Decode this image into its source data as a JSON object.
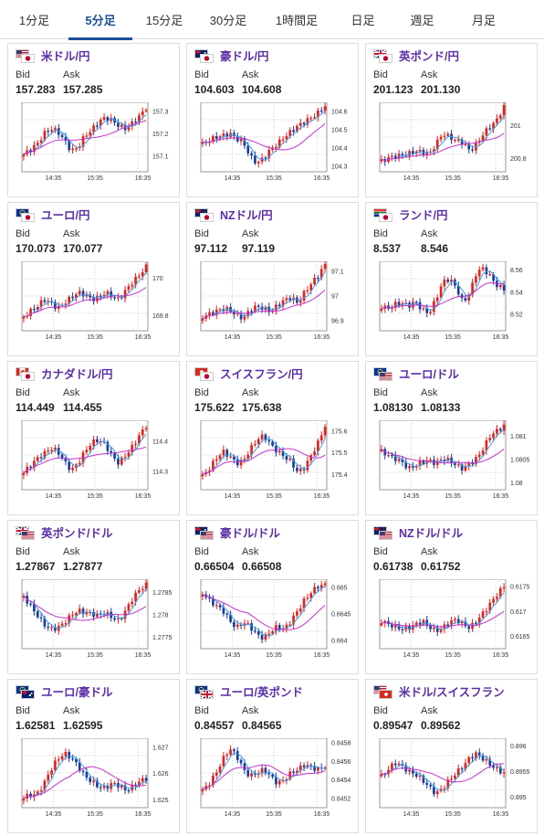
{
  "tabs": [
    {
      "label": "1分足",
      "active": false
    },
    {
      "label": "5分足",
      "active": true
    },
    {
      "label": "15分足",
      "active": false
    },
    {
      "label": "30分足",
      "active": false
    },
    {
      "label": "1時間足",
      "active": false
    },
    {
      "label": "日足",
      "active": false
    },
    {
      "label": "週足",
      "active": false
    },
    {
      "label": "月足",
      "active": false
    }
  ],
  "colors": {
    "accent": "#1a4f96",
    "pair_name": "#5a2ea6",
    "candle_up": "#e0231e",
    "candle_down": "#1a3d9c",
    "ma_short": "#3aa0e6",
    "ma_long": "#c233c9"
  },
  "labels": {
    "bid": "Bid",
    "ask": "Ask"
  },
  "cards": [
    {
      "pair": "米ドル/円",
      "flags": [
        "us",
        "jp"
      ],
      "bid": "157.283",
      "ask": "157.285",
      "chart_data": {
        "type": "candlestick",
        "x_ticks": [
          "14:35",
          "15:35",
          "16:35"
        ],
        "y_ticks": [
          "157.3",
          "157.2",
          "157.1"
        ],
        "ylim": [
          157.03,
          157.34
        ],
        "pattern": [
          0.25,
          0.32,
          0.4,
          0.55,
          0.62,
          0.58,
          0.45,
          0.3,
          0.35,
          0.52,
          0.6,
          0.72,
          0.78,
          0.74,
          0.66,
          0.62,
          0.7,
          0.8,
          0.92
        ]
      }
    },
    {
      "pair": "豪ドル/円",
      "flags": [
        "au",
        "jp"
      ],
      "bid": "104.603",
      "ask": "104.608",
      "chart_data": {
        "type": "candlestick",
        "x_ticks": [
          "14:35",
          "15:35",
          "16:35"
        ],
        "y_ticks": [
          "104.6",
          "104.5",
          "104.4",
          "104.3"
        ],
        "ylim": [
          104.27,
          104.65
        ],
        "pattern": [
          0.4,
          0.45,
          0.5,
          0.52,
          0.55,
          0.48,
          0.42,
          0.22,
          0.12,
          0.2,
          0.32,
          0.4,
          0.5,
          0.58,
          0.66,
          0.72,
          0.78,
          0.85,
          0.95
        ]
      }
    },
    {
      "pair": "英ポンド/円",
      "flags": [
        "gb",
        "jp"
      ],
      "bid": "201.123",
      "ask": "201.130",
      "chart_data": {
        "type": "candlestick",
        "x_ticks": [
          "14:35",
          "15:35",
          "16:35"
        ],
        "y_ticks": [
          "201",
          "200.8"
        ],
        "ylim": [
          200.72,
          201.14
        ],
        "pattern": [
          0.15,
          0.2,
          0.22,
          0.24,
          0.26,
          0.3,
          0.28,
          0.25,
          0.4,
          0.55,
          0.5,
          0.45,
          0.42,
          0.3,
          0.4,
          0.55,
          0.65,
          0.75,
          0.95
        ]
      }
    },
    {
      "pair": "ユーロ/円",
      "flags": [
        "eu",
        "jp"
      ],
      "bid": "170.073",
      "ask": "170.077",
      "chart_data": {
        "type": "candlestick",
        "x_ticks": [
          "14:35",
          "15:35",
          "16:35"
        ],
        "y_ticks": [
          "170",
          "169.8"
        ],
        "ylim": [
          169.72,
          170.09
        ],
        "pattern": [
          0.2,
          0.28,
          0.35,
          0.45,
          0.4,
          0.32,
          0.4,
          0.48,
          0.55,
          0.52,
          0.45,
          0.48,
          0.55,
          0.5,
          0.45,
          0.58,
          0.7,
          0.8,
          0.92
        ]
      }
    },
    {
      "pair": "NZドル/円",
      "flags": [
        "nz",
        "jp"
      ],
      "bid": "97.112",
      "ask": "97.119",
      "chart_data": {
        "type": "candlestick",
        "x_ticks": [
          "14:35",
          "15:35",
          "16:35"
        ],
        "y_ticks": [
          "97.1",
          "97",
          "96.9"
        ],
        "ylim": [
          96.86,
          97.14
        ],
        "pattern": [
          0.2,
          0.24,
          0.28,
          0.32,
          0.3,
          0.22,
          0.18,
          0.3,
          0.35,
          0.32,
          0.28,
          0.36,
          0.44,
          0.48,
          0.4,
          0.55,
          0.68,
          0.8,
          0.95
        ]
      }
    },
    {
      "pair": "ランド/円",
      "flags": [
        "za",
        "jp"
      ],
      "bid": "8.537",
      "ask": "8.546",
      "chart_data": {
        "type": "candlestick",
        "x_ticks": [
          "14:35",
          "15:35",
          "16:35"
        ],
        "y_ticks": [
          "8.56",
          "8.54",
          "8.52"
        ],
        "ylim": [
          8.505,
          8.568
        ],
        "pattern": [
          0.35,
          0.32,
          0.38,
          0.4,
          0.36,
          0.42,
          0.3,
          0.25,
          0.45,
          0.7,
          0.75,
          0.62,
          0.4,
          0.55,
          0.85,
          0.9,
          0.78,
          0.65,
          0.6
        ]
      }
    },
    {
      "pair": "カナダドル/円",
      "flags": [
        "ca",
        "jp"
      ],
      "bid": "114.449",
      "ask": "114.455",
      "chart_data": {
        "type": "candlestick",
        "x_ticks": [
          "14:35",
          "15:35",
          "16:35"
        ],
        "y_ticks": [
          "114.4",
          "114.3"
        ],
        "ylim": [
          114.24,
          114.47
        ],
        "pattern": [
          0.25,
          0.35,
          0.45,
          0.52,
          0.6,
          0.55,
          0.4,
          0.28,
          0.38,
          0.55,
          0.68,
          0.72,
          0.65,
          0.48,
          0.38,
          0.5,
          0.62,
          0.78,
          0.92
        ]
      }
    },
    {
      "pair": "スイスフラン/円",
      "flags": [
        "ch",
        "jp"
      ],
      "bid": "175.622",
      "ask": "175.638",
      "chart_data": {
        "type": "candlestick",
        "x_ticks": [
          "14:35",
          "15:35",
          "16:35"
        ],
        "y_ticks": [
          "175.6",
          "175.5",
          "175.4"
        ],
        "ylim": [
          175.33,
          175.65
        ],
        "pattern": [
          0.2,
          0.3,
          0.45,
          0.55,
          0.48,
          0.38,
          0.42,
          0.58,
          0.72,
          0.78,
          0.65,
          0.55,
          0.48,
          0.4,
          0.25,
          0.32,
          0.5,
          0.68,
          0.92
        ]
      }
    },
    {
      "pair": "ユーロ/ドル",
      "flags": [
        "eu",
        "us"
      ],
      "bid": "1.08130",
      "ask": "1.08133",
      "chart_data": {
        "type": "candlestick",
        "x_ticks": [
          "14:35",
          "15:35",
          "16:35"
        ],
        "y_ticks": [
          "1.081",
          "1.0805",
          "1.08"
        ],
        "ylim": [
          1.07985,
          1.08135
        ],
        "pattern": [
          0.55,
          0.5,
          0.45,
          0.4,
          0.3,
          0.35,
          0.4,
          0.42,
          0.38,
          0.45,
          0.42,
          0.35,
          0.3,
          0.38,
          0.45,
          0.6,
          0.78,
          0.85,
          0.92
        ]
      }
    },
    {
      "pair": "英ポンド/ドル",
      "flags": [
        "gb",
        "us"
      ],
      "bid": "1.27867",
      "ask": "1.27877",
      "chart_data": {
        "type": "candlestick",
        "x_ticks": [
          "14:35",
          "15:35",
          "16:35"
        ],
        "y_ticks": [
          "1.2785",
          "1.278",
          "1.2775"
        ],
        "ylim": [
          1.27725,
          1.2788
        ],
        "pattern": [
          0.75,
          0.62,
          0.48,
          0.35,
          0.28,
          0.3,
          0.38,
          0.48,
          0.55,
          0.52,
          0.5,
          0.48,
          0.52,
          0.45,
          0.4,
          0.55,
          0.72,
          0.85,
          0.92
        ]
      }
    },
    {
      "pair": "豪ドル/ドル",
      "flags": [
        "au",
        "us"
      ],
      "bid": "0.66504",
      "ask": "0.66508",
      "chart_data": {
        "type": "candlestick",
        "x_ticks": [
          "14:35",
          "15:35",
          "16:35"
        ],
        "y_ticks": [
          "0.665",
          "0.6645",
          "0.664"
        ],
        "ylim": [
          0.66385,
          0.66515
        ],
        "pattern": [
          0.8,
          0.7,
          0.62,
          0.55,
          0.4,
          0.3,
          0.38,
          0.32,
          0.2,
          0.15,
          0.25,
          0.32,
          0.28,
          0.4,
          0.55,
          0.7,
          0.82,
          0.9,
          0.92
        ]
      }
    },
    {
      "pair": "NZドル/ドル",
      "flags": [
        "nz",
        "us"
      ],
      "bid": "0.61738",
      "ask": "0.61752",
      "chart_data": {
        "type": "candlestick",
        "x_ticks": [
          "14:35",
          "15:35",
          "16:35"
        ],
        "y_ticks": [
          "0.6175",
          "0.617",
          "0.6165"
        ],
        "ylim": [
          0.61625,
          0.61765
        ],
        "pattern": [
          0.4,
          0.35,
          0.32,
          0.28,
          0.3,
          0.35,
          0.4,
          0.32,
          0.25,
          0.3,
          0.38,
          0.42,
          0.35,
          0.3,
          0.4,
          0.52,
          0.65,
          0.78,
          0.9
        ]
      }
    },
    {
      "pair": "ユーロ/豪ドル",
      "flags": [
        "eu",
        "au"
      ],
      "bid": "1.62581",
      "ask": "1.62595",
      "chart_data": {
        "type": "candlestick",
        "x_ticks": [
          "14:35",
          "15:35",
          "16:35"
        ],
        "y_ticks": [
          "1.627",
          "1.626",
          "1.625"
        ],
        "ylim": [
          1.6247,
          1.62735
        ],
        "pattern": [
          0.15,
          0.18,
          0.2,
          0.35,
          0.55,
          0.7,
          0.78,
          0.72,
          0.6,
          0.45,
          0.38,
          0.3,
          0.28,
          0.35,
          0.32,
          0.25,
          0.3,
          0.38,
          0.42
        ]
      }
    },
    {
      "pair": "ユーロ/英ポンド",
      "flags": [
        "eu",
        "gb"
      ],
      "bid": "0.84557",
      "ask": "0.84565",
      "chart_data": {
        "type": "candlestick",
        "x_ticks": [
          "14:35",
          "15:35",
          "16:35"
        ],
        "y_ticks": [
          "0.8458",
          "0.8456",
          "0.8454",
          "0.8452"
        ],
        "ylim": [
          0.8451,
          0.84585
        ],
        "pattern": [
          0.25,
          0.35,
          0.5,
          0.7,
          0.85,
          0.75,
          0.55,
          0.45,
          0.5,
          0.55,
          0.45,
          0.35,
          0.4,
          0.5,
          0.55,
          0.62,
          0.58,
          0.55,
          0.6
        ]
      }
    },
    {
      "pair": "米ドル/スイスフラン",
      "flags": [
        "us",
        "ch"
      ],
      "bid": "0.89547",
      "ask": "0.89562",
      "chart_data": {
        "type": "candlestick",
        "x_ticks": [
          "14:35",
          "15:35",
          "16:35"
        ],
        "y_ticks": [
          "0.896",
          "0.8955",
          "0.895"
        ],
        "ylim": [
          0.8948,
          0.89615
        ],
        "pattern": [
          0.45,
          0.55,
          0.65,
          0.6,
          0.52,
          0.48,
          0.4,
          0.3,
          0.2,
          0.28,
          0.4,
          0.5,
          0.6,
          0.72,
          0.78,
          0.7,
          0.62,
          0.55,
          0.5
        ]
      }
    }
  ]
}
